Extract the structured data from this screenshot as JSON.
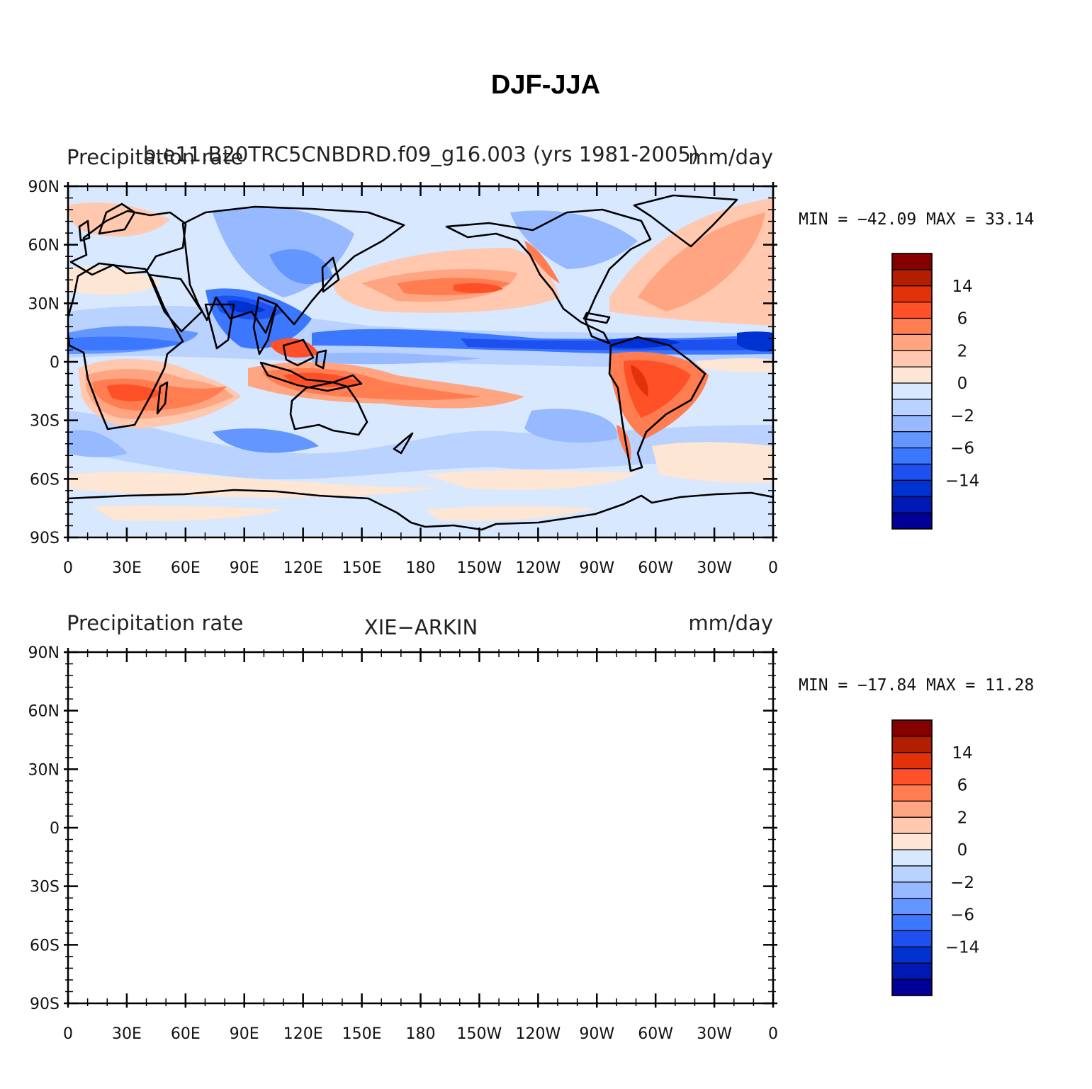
{
  "figure_title": "DJF-JJA",
  "colorbar_colors": [
    "#000096",
    "#0019b4",
    "#0032d2",
    "#1e50f0",
    "#3c78ff",
    "#6496ff",
    "#96b9ff",
    "#b9d2ff",
    "#d7e8ff",
    "#fde6d4",
    "#ffc8af",
    "#ffa582",
    "#ff7d50",
    "#ff5028",
    "#e1320a",
    "#b41e00",
    "#870000"
  ],
  "colorbar_labels": [
    "14",
    "6",
    "2",
    "0",
    "−2",
    "−6",
    "−14"
  ],
  "lat_labels": [
    "90N",
    "60N",
    "30N",
    "0",
    "30S",
    "60S",
    "90S"
  ],
  "lon_labels": [
    "0",
    "30E",
    "60E",
    "90E",
    "120E",
    "150E",
    "180",
    "150W",
    "120W",
    "90W",
    "60W",
    "30W",
    "0"
  ],
  "panels": [
    {
      "left": "Precipitation rate",
      "center": "b.e11.B20TRC5CNBDRD.f09_g16.003 (yrs 1981-2005)",
      "right": "mm/day",
      "stats": "MIN = −42.09 MAX =  33.14"
    },
    {
      "left": "Precipitation rate",
      "center": "XIE−ARKIN",
      "right": "mm/day",
      "stats": "MIN = −17.84 MAX =  11.28"
    }
  ]
}
